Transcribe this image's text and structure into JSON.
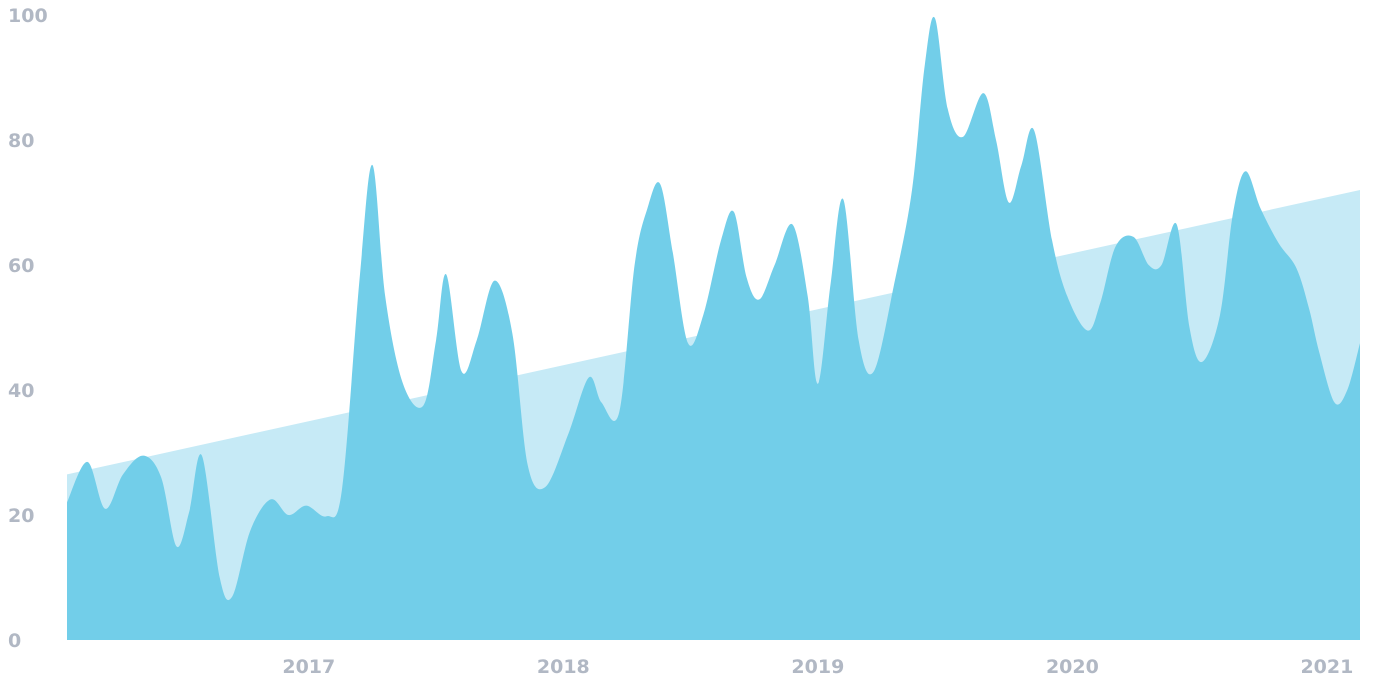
{
  "chart_data": {
    "type": "area",
    "title": "",
    "xlabel": "",
    "ylabel": "",
    "x_range": [
      2016.05,
      2021.0
    ],
    "ylim": [
      0,
      100
    ],
    "grid": false,
    "legend": "none",
    "y_ticks": [
      "0",
      "20",
      "40",
      "60",
      "80",
      "100"
    ],
    "x_ticks": [
      "2017",
      "2018",
      "2019",
      "2020",
      "2021"
    ],
    "colors": {
      "series": "#72cee9",
      "trend": "#c6eaf6",
      "tick_text": "#b1b8c4"
    },
    "series": [
      {
        "values": [
          [
            2016.05,
            22
          ],
          [
            2016.13,
            28.5
          ],
          [
            2016.2,
            21
          ],
          [
            2016.27,
            26.5
          ],
          [
            2016.35,
            29.5
          ],
          [
            2016.42,
            26
          ],
          [
            2016.48,
            15
          ],
          [
            2016.53,
            20.5
          ],
          [
            2016.58,
            29.5
          ],
          [
            2016.65,
            10
          ],
          [
            2016.7,
            7
          ],
          [
            2016.77,
            17.5
          ],
          [
            2016.85,
            22.5
          ],
          [
            2016.92,
            20
          ],
          [
            2016.99,
            21.5
          ],
          [
            2017.07,
            19.8
          ],
          [
            2017.13,
            24
          ],
          [
            2017.2,
            58
          ],
          [
            2017.25,
            76
          ],
          [
            2017.3,
            55
          ],
          [
            2017.37,
            41
          ],
          [
            2017.45,
            37.5
          ],
          [
            2017.5,
            48
          ],
          [
            2017.54,
            58.5
          ],
          [
            2017.6,
            43
          ],
          [
            2017.66,
            48
          ],
          [
            2017.73,
            57.5
          ],
          [
            2017.8,
            49
          ],
          [
            2017.86,
            28
          ],
          [
            2017.93,
            24.5
          ],
          [
            2018.02,
            33
          ],
          [
            2018.1,
            42
          ],
          [
            2018.15,
            38
          ],
          [
            2018.22,
            36.5
          ],
          [
            2018.28,
            60
          ],
          [
            2018.33,
            69
          ],
          [
            2018.38,
            73
          ],
          [
            2018.43,
            62
          ],
          [
            2018.49,
            47.5
          ],
          [
            2018.55,
            52
          ],
          [
            2018.62,
            64
          ],
          [
            2018.67,
            68.5
          ],
          [
            2018.72,
            58
          ],
          [
            2018.77,
            54.5
          ],
          [
            2018.83,
            60
          ],
          [
            2018.9,
            66.5
          ],
          [
            2018.96,
            55
          ],
          [
            2019.0,
            41
          ],
          [
            2019.05,
            57
          ],
          [
            2019.1,
            70.5
          ],
          [
            2019.16,
            48
          ],
          [
            2019.22,
            43
          ],
          [
            2019.3,
            57
          ],
          [
            2019.37,
            72
          ],
          [
            2019.42,
            92
          ],
          [
            2019.46,
            99.5
          ],
          [
            2019.51,
            85
          ],
          [
            2019.57,
            80.5
          ],
          [
            2019.65,
            87.5
          ],
          [
            2019.7,
            80
          ],
          [
            2019.75,
            70
          ],
          [
            2019.8,
            76
          ],
          [
            2019.85,
            81.5
          ],
          [
            2019.92,
            64
          ],
          [
            2019.98,
            55
          ],
          [
            2020.06,
            49.5
          ],
          [
            2020.11,
            54
          ],
          [
            2020.17,
            63
          ],
          [
            2020.24,
            64.5
          ],
          [
            2020.3,
            60
          ],
          [
            2020.35,
            60
          ],
          [
            2020.41,
            66.5
          ],
          [
            2020.46,
            50
          ],
          [
            2020.51,
            44.5
          ],
          [
            2020.58,
            52
          ],
          [
            2020.63,
            68
          ],
          [
            2020.68,
            75
          ],
          [
            2020.74,
            69
          ],
          [
            2020.81,
            63.5
          ],
          [
            2020.88,
            59.5
          ],
          [
            2020.93,
            53
          ],
          [
            2020.97,
            46
          ],
          [
            2021.03,
            38
          ],
          [
            2021.08,
            40
          ],
          [
            2021.13,
            47.5
          ]
        ]
      },
      {
        "values": [
          [
            2016.05,
            26.5
          ],
          [
            2021.13,
            72
          ]
        ]
      }
    ]
  }
}
